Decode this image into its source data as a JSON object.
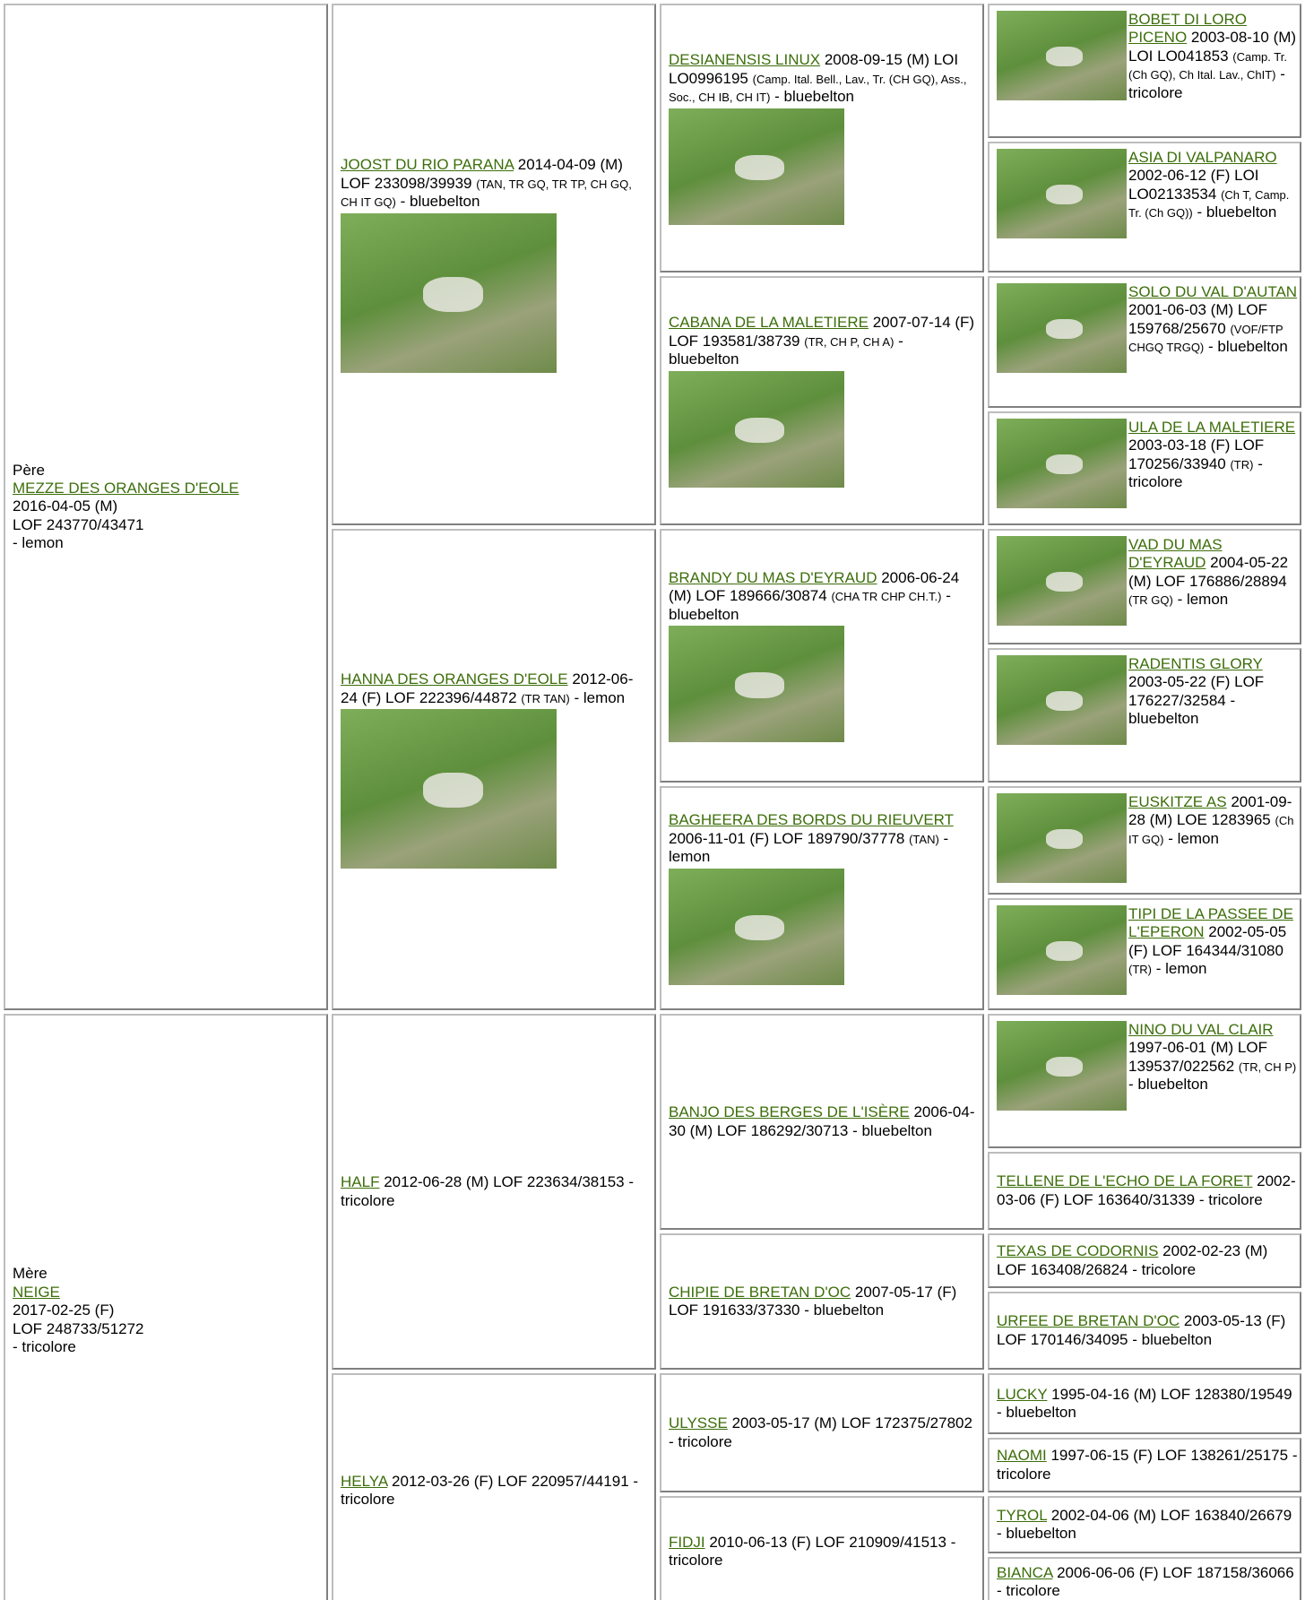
{
  "pedigree": {
    "generation_1": [
      {
        "role": "Père",
        "name": "MEZZE DES ORANGES D'EOLE",
        "details": "2016-04-05 (M)",
        "registry": "LOF 243770/43471",
        "color": "- lemon"
      },
      {
        "role": "Mère",
        "name": "NEIGE",
        "details": "2017-02-25 (F)",
        "registry": "LOF 248733/51272",
        "color": "- tricolore"
      }
    ],
    "generation_2": [
      {
        "name": "JOOST DU RIO PARANA",
        "details": "2014-04-09 (M) LOF 233098/39939",
        "titles": "(TAN, TR GQ, TR TP, CH GQ, CH IT GQ)",
        "color": "- bluebelton"
      },
      {
        "name": "HANNA DES ORANGES D'EOLE",
        "details": "2012-06-24 (F) LOF 222396/44872",
        "titles": "(TR TAN)",
        "color": "- lemon"
      },
      {
        "name": "HALF",
        "details": "2012-06-28 (M) LOF 223634/38153",
        "color": "- tricolore"
      },
      {
        "name": "HELYA",
        "details": "2012-03-26 (F) LOF 220957/44191",
        "color": "- tricolore"
      }
    ],
    "generation_3": [
      {
        "name": "DESIANENSIS LINUX",
        "details": "2008-09-15 (M) LOI LO0996195",
        "titles": "(Camp. Ital. Bell., Lav., Tr. (CH GQ), Ass., Soc., CH IB, CH IT)",
        "color": "- bluebelton"
      },
      {
        "name": "CABANA DE LA MALETIERE",
        "details": "2007-07-14 (F) LOF 193581/38739",
        "titles": "(TR, CH P, CH A)",
        "color": "- bluebelton"
      },
      {
        "name": "BRANDY DU MAS D'EYRAUD",
        "details": "2006-06-24 (M) LOF 189666/30874",
        "titles": "(CHA TR CHP CH.T.)",
        "color": "- bluebelton"
      },
      {
        "name": "BAGHEERA DES BORDS DU RIEUVERT",
        "details": "2006-11-01 (F) LOF 189790/37778",
        "titles": "(TAN)",
        "color": "- lemon"
      },
      {
        "name": "BANJO DES BERGES DE L'ISÈRE",
        "details": "2006-04-30 (M) LOF 186292/30713",
        "color": "- bluebelton"
      },
      {
        "name": "CHIPIE DE BRETAN D'OC",
        "details": "2007-05-17 (F) LOF 191633/37330",
        "color": "- bluebelton"
      },
      {
        "name": "ULYSSE",
        "details": "2003-05-17 (M) LOF 172375/27802",
        "color": "- tricolore"
      },
      {
        "name": "FIDJI",
        "details": "2010-06-13 (F) LOF 210909/41513",
        "color": "- tricolore"
      }
    ],
    "generation_4": [
      {
        "name": "BOBET DI LORO PICENO",
        "details": "2003-08-10 (M) LOI LO041853",
        "titles": "(Camp. Tr. (Ch GQ), Ch Ital. Lav., ChIT)",
        "color": "- tricolore"
      },
      {
        "name": "ASIA DI VALPANARO",
        "details": "2002-06-12 (F) LOI LO02133534",
        "titles": "(Ch T, Camp. Tr. (Ch GQ))",
        "color": "- bluebelton"
      },
      {
        "name": "SOLO DU VAL D'AUTAN",
        "details": "2001-06-03 (M) LOF 159768/25670",
        "titles": "(VOF/FTP CHGQ TRGQ)",
        "color": "- bluebelton"
      },
      {
        "name": "ULA DE LA MALETIERE",
        "details": "2003-03-18 (F) LOF 170256/33940",
        "titles": "(TR)",
        "color": "- tricolore"
      },
      {
        "name": "VAD DU MAS D'EYRAUD",
        "details": "2004-05-22 (M) LOF 176886/28894",
        "titles": "(TR GQ)",
        "color": "- lemon"
      },
      {
        "name": "RADENTIS GLORY",
        "details": "2003-05-22 (F) LOF 176227/32584",
        "color": "- bluebelton"
      },
      {
        "name": "EUSKITZE AS",
        "details": "2001-09-28 (M) LOE 1283965",
        "titles": "(Ch IT GQ)",
        "color": "- lemon"
      },
      {
        "name": "TIPI DE LA PASSEE DE L'EPERON",
        "details": "2002-05-05 (F) LOF 164344/31080",
        "titles": "(TR)",
        "color": "- lemon"
      },
      {
        "name": "NINO DU VAL CLAIR",
        "details": "1997-06-01 (M) LOF 139537/022562",
        "titles": "(TR, CH P)",
        "color": "- bluebelton"
      },
      {
        "name": "TELLENE DE L'ECHO DE LA FORET",
        "details": "2002-03-06 (F) LOF 163640/31339",
        "color": "- tricolore"
      },
      {
        "name": "TEXAS DE CODORNIS",
        "details": "2002-02-23 (M) LOF 163408/26824",
        "color": "- tricolore"
      },
      {
        "name": "URFEE DE BRETAN D'OC",
        "details": "2003-05-13 (F) LOF 170146/34095",
        "color": "- bluebelton"
      },
      {
        "name": "LUCKY",
        "details": "1995-04-16 (M) LOF 128380/19549",
        "color": "- bluebelton"
      },
      {
        "name": "NAOMI",
        "details": "1997-06-15 (F) LOF 138261/25175",
        "color": "- tricolore"
      },
      {
        "name": "TYROL",
        "details": "2002-04-06 (M) LOF 163840/26679",
        "color": "- bluebelton"
      },
      {
        "name": "BIANCA",
        "details": "2006-06-06 (F) LOF 187158/36066",
        "color": "- tricolore"
      }
    ]
  }
}
